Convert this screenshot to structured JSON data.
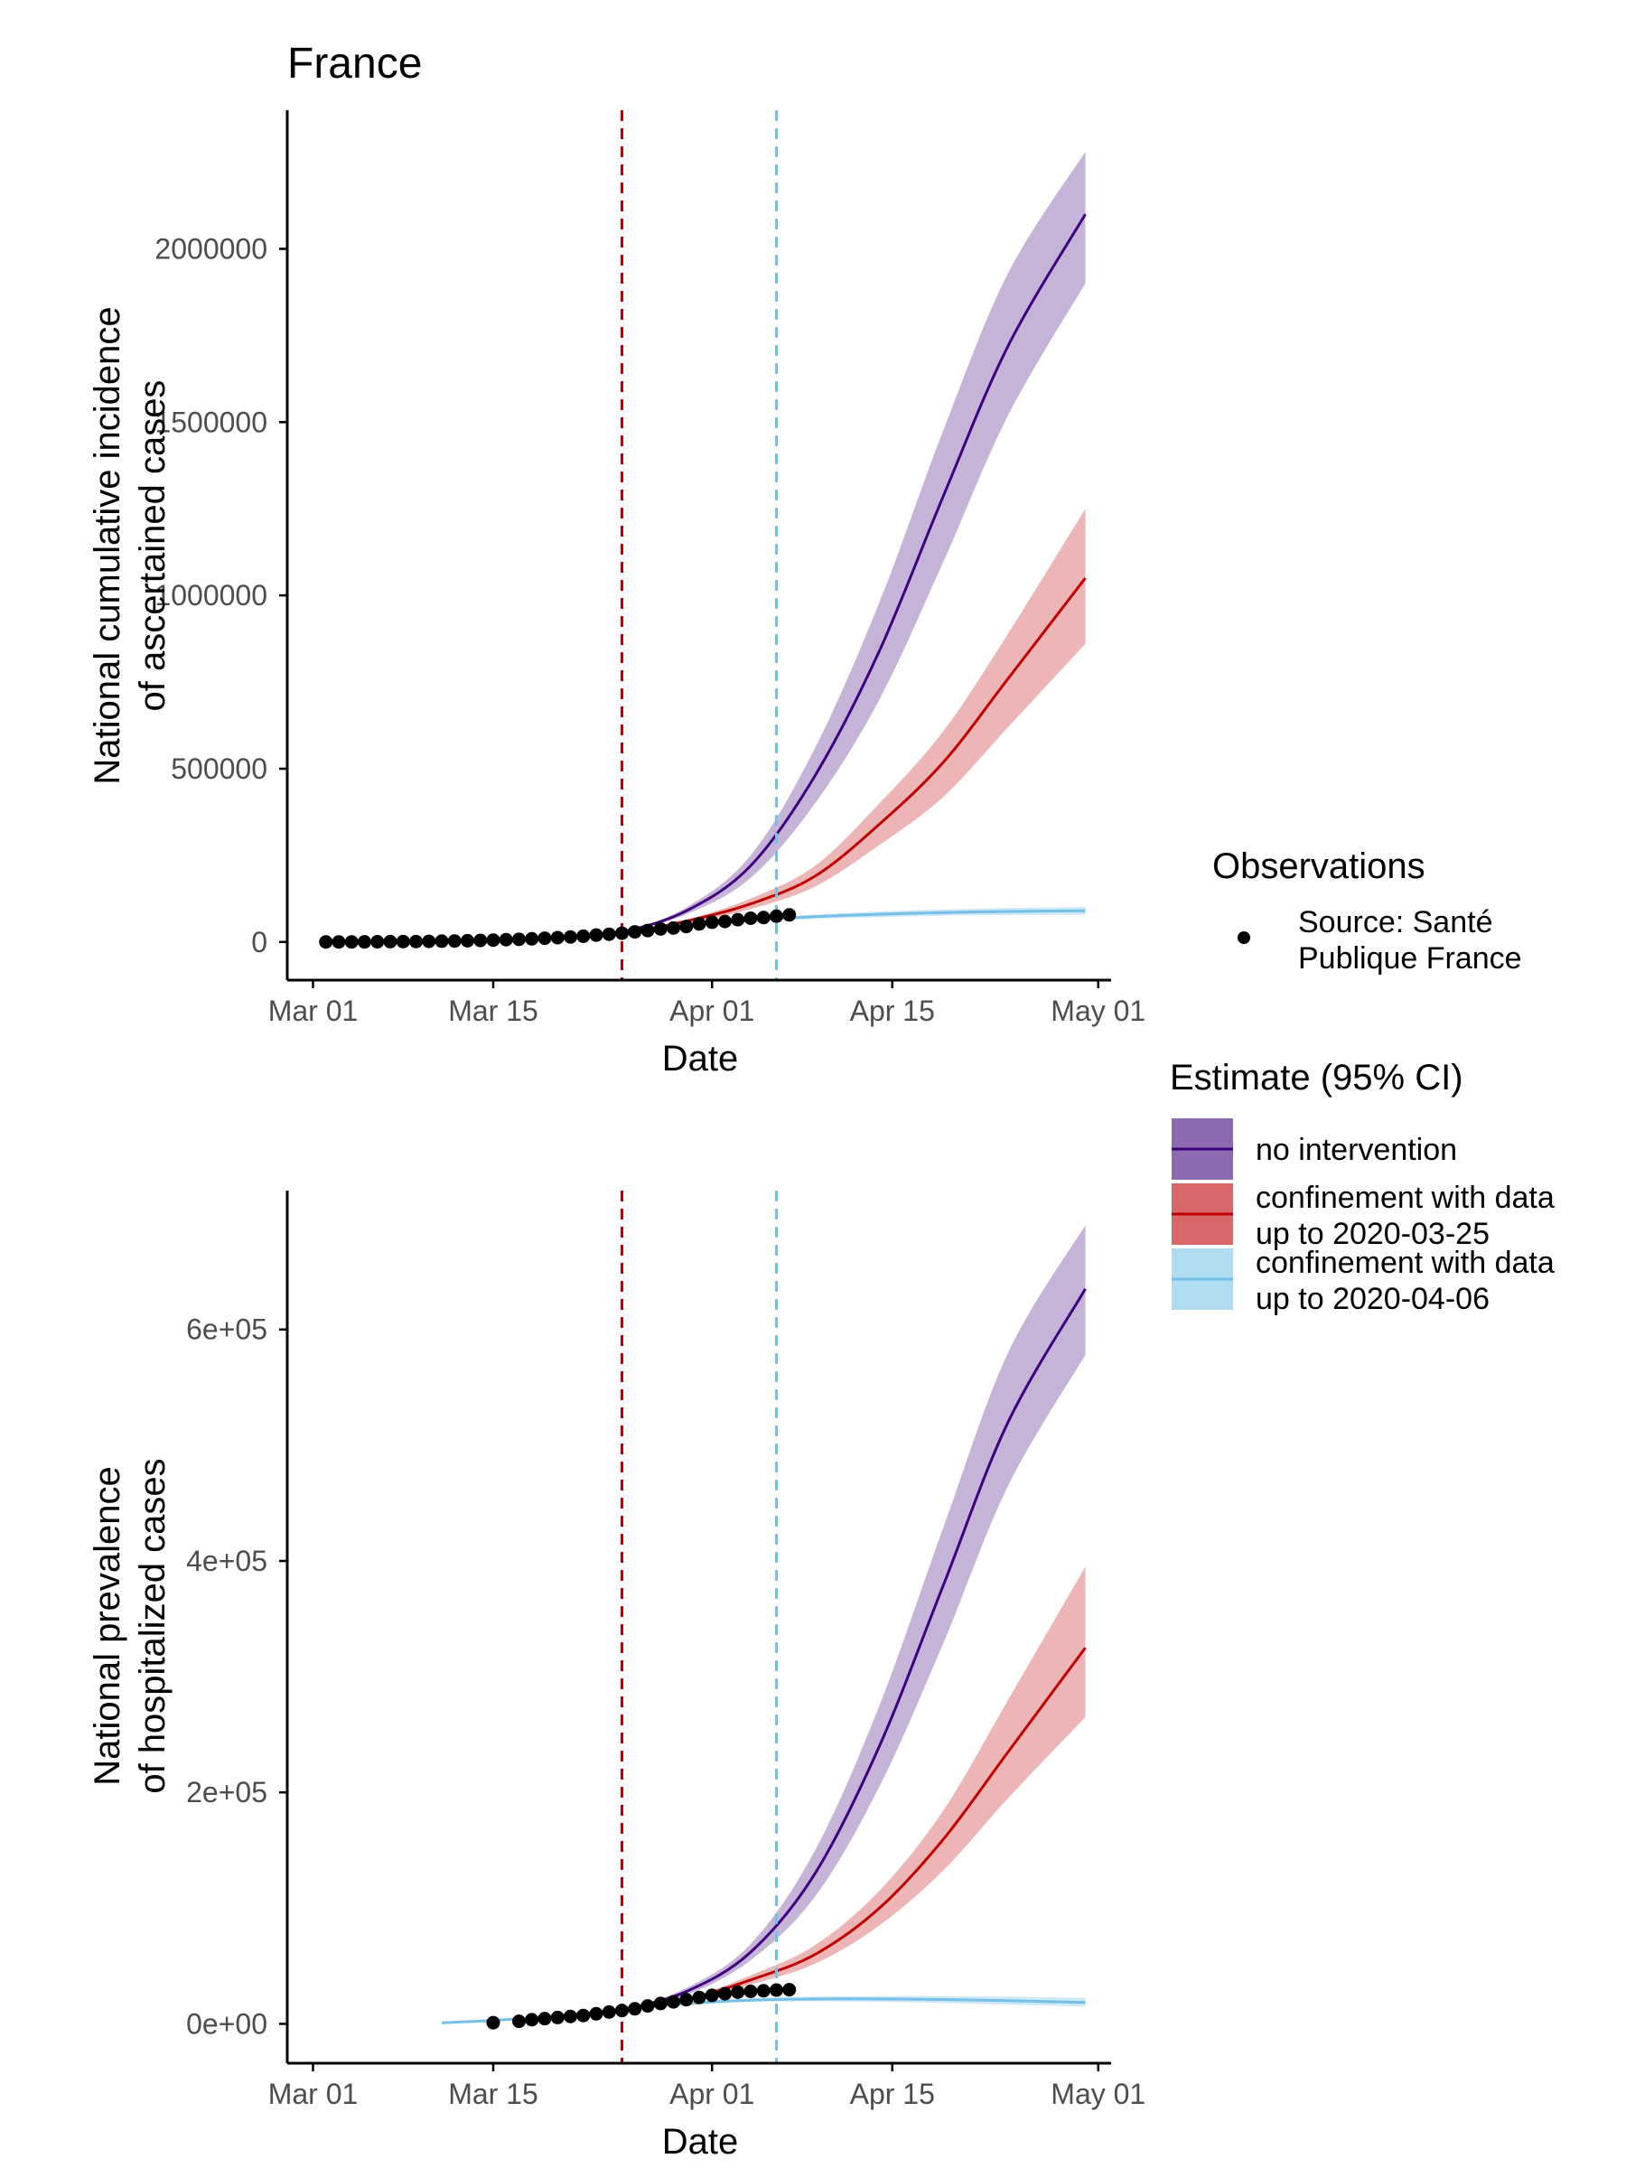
{
  "title": "France",
  "legend": {
    "observations": {
      "title": "Observations",
      "items": [
        {
          "label_lines": [
            "Source: Santé",
            "Publique France"
          ]
        }
      ]
    },
    "estimate": {
      "title": "Estimate (95% CI)",
      "items": [
        {
          "key": "noint",
          "label_lines": [
            "no intervention"
          ]
        },
        {
          "key": "conf25",
          "label_lines": [
            "confinement with data",
            "up to 2020-03-25"
          ]
        },
        {
          "key": "conf06",
          "label_lines": [
            "confinement with data",
            "up to 2020-04-06"
          ]
        }
      ]
    }
  },
  "colors": {
    "noint_line": "#3f007d",
    "noint_band": "#bca6d1",
    "noint_key": "#8c6bb1",
    "conf25_line": "#c00000",
    "conf25_band": "#eaa8a8",
    "conf25_key": "#d9676a",
    "conf06_line": "#74c0e8",
    "conf06_band": "#c6e4f4",
    "conf06_key": "#b0dcf2",
    "vline_red": "#c00000",
    "vline_blue": "#74c0e8",
    "points": "#000000",
    "axis": "#000000"
  },
  "chart_data": [
    {
      "type": "line",
      "panel": "top",
      "xlabel": "Date",
      "ylabel_lines": [
        "National cumulative incidence",
        "of ascertained cases"
      ],
      "xlim": [
        "2020-02-28",
        "2020-05-02"
      ],
      "ylim": [
        -110000,
        2400000
      ],
      "xticks": [
        {
          "date": "2020-03-01",
          "label": "Mar 01"
        },
        {
          "date": "2020-03-15",
          "label": "Mar 15"
        },
        {
          "date": "2020-04-01",
          "label": "Apr 01"
        },
        {
          "date": "2020-04-15",
          "label": "Apr 15"
        },
        {
          "date": "2020-05-01",
          "label": "May 01"
        }
      ],
      "yticks": [
        {
          "value": 0,
          "label": "0"
        },
        {
          "value": 500000,
          "label": "500000"
        },
        {
          "value": 1000000,
          "label": "1000000"
        },
        {
          "value": 1500000,
          "label": "1500000"
        },
        {
          "value": 2000000,
          "label": "2000000"
        }
      ],
      "vlines": [
        {
          "date": "2020-03-25",
          "color": "red"
        },
        {
          "date": "2020-04-06",
          "color": "blue"
        }
      ],
      "observations": {
        "x": [
          "2020-03-02",
          "2020-03-03",
          "2020-03-04",
          "2020-03-05",
          "2020-03-06",
          "2020-03-07",
          "2020-03-08",
          "2020-03-09",
          "2020-03-10",
          "2020-03-11",
          "2020-03-12",
          "2020-03-13",
          "2020-03-14",
          "2020-03-15",
          "2020-03-16",
          "2020-03-17",
          "2020-03-18",
          "2020-03-19",
          "2020-03-20",
          "2020-03-21",
          "2020-03-22",
          "2020-03-23",
          "2020-03-24",
          "2020-03-25",
          "2020-03-26",
          "2020-03-27",
          "2020-03-28",
          "2020-03-29",
          "2020-03-30",
          "2020-03-31",
          "2020-04-01",
          "2020-04-02",
          "2020-04-03",
          "2020-04-04",
          "2020-04-05",
          "2020-04-06",
          "2020-04-07"
        ],
        "y": [
          190,
          212,
          285,
          423,
          613,
          949,
          1126,
          1209,
          1784,
          2281,
          2876,
          3661,
          4499,
          5423,
          6633,
          7730,
          9134,
          10995,
          12612,
          14459,
          16689,
          19856,
          22302,
          25233,
          29155,
          32964,
          37575,
          40174,
          44550,
          52128,
          56989,
          59105,
          64338,
          68605,
          70478,
          74390,
          78167
        ]
      },
      "series": [
        {
          "key": "noint",
          "x": [
            "2020-03-20",
            "2020-03-25",
            "2020-03-30",
            "2020-04-04",
            "2020-04-09",
            "2020-04-14",
            "2020-04-19",
            "2020-04-24",
            "2020-04-30"
          ],
          "y": [
            13000,
            30000,
            90000,
            220000,
            480000,
            840000,
            1290000,
            1720000,
            2100000
          ],
          "lower": [
            13000,
            30000,
            80000,
            185000,
            400000,
            700000,
            1100000,
            1520000,
            1900000
          ],
          "upper": [
            13000,
            30000,
            100000,
            250000,
            560000,
            980000,
            1480000,
            1930000,
            2280000
          ]
        },
        {
          "key": "conf25",
          "x": [
            "2020-03-20",
            "2020-03-25",
            "2020-03-30",
            "2020-04-04",
            "2020-04-09",
            "2020-04-14",
            "2020-04-19",
            "2020-04-24",
            "2020-04-30"
          ],
          "y": [
            13000,
            27000,
            60000,
            110000,
            190000,
            340000,
            520000,
            760000,
            1050000
          ],
          "lower": [
            13000,
            27000,
            55000,
            95000,
            160000,
            280000,
            420000,
            620000,
            860000
          ],
          "upper": [
            13000,
            27000,
            65000,
            125000,
            220000,
            400000,
            610000,
            890000,
            1250000
          ]
        },
        {
          "key": "conf06",
          "x": [
            "2020-03-20",
            "2020-03-25",
            "2020-03-30",
            "2020-04-04",
            "2020-04-09",
            "2020-04-14",
            "2020-04-19",
            "2020-04-24",
            "2020-04-30"
          ],
          "y": [
            13000,
            26000,
            45000,
            62000,
            73000,
            80000,
            85000,
            88000,
            90000
          ],
          "lower": [
            13000,
            26000,
            43000,
            58000,
            67000,
            72000,
            76000,
            78000,
            79000
          ],
          "upper": [
            13000,
            26000,
            47000,
            66000,
            79000,
            88000,
            94000,
            98000,
            101000
          ]
        }
      ]
    },
    {
      "type": "line",
      "panel": "bottom",
      "xlabel": "Date",
      "ylabel_lines": [
        "National prevalence",
        "of hospitalized cases"
      ],
      "xlim": [
        "2020-02-28",
        "2020-05-02"
      ],
      "ylim": [
        -34000,
        720000
      ],
      "xticks": [
        {
          "date": "2020-03-01",
          "label": "Mar 01"
        },
        {
          "date": "2020-03-15",
          "label": "Mar 15"
        },
        {
          "date": "2020-04-01",
          "label": "Apr 01"
        },
        {
          "date": "2020-04-15",
          "label": "Apr 15"
        },
        {
          "date": "2020-05-01",
          "label": "May 01"
        }
      ],
      "yticks": [
        {
          "value": 0,
          "label": "0e+00"
        },
        {
          "value": 200000,
          "label": "2e+05"
        },
        {
          "value": 400000,
          "label": "4e+05"
        },
        {
          "value": 600000,
          "label": "6e+05"
        }
      ],
      "vlines": [
        {
          "date": "2020-03-25",
          "color": "red"
        },
        {
          "date": "2020-04-06",
          "color": "blue"
        }
      ],
      "observations": {
        "x": [
          "2020-03-15",
          "2020-03-17",
          "2020-03-18",
          "2020-03-19",
          "2020-03-20",
          "2020-03-21",
          "2020-03-22",
          "2020-03-23",
          "2020-03-24",
          "2020-03-25",
          "2020-03-26",
          "2020-03-27",
          "2020-03-28",
          "2020-03-29",
          "2020-03-30",
          "2020-03-31",
          "2020-04-01",
          "2020-04-02",
          "2020-04-03",
          "2020-04-04",
          "2020-04-05",
          "2020-04-06",
          "2020-04-07"
        ],
        "y": [
          1000,
          2200,
          3600,
          4500,
          5500,
          6400,
          7200,
          8700,
          10200,
          11500,
          13000,
          15500,
          17600,
          19000,
          20900,
          22800,
          24600,
          26000,
          27400,
          28100,
          28600,
          29200,
          29500
        ]
      },
      "series": [
        {
          "key": "conf06",
          "x": [
            "2020-03-11",
            "2020-03-15",
            "2020-03-20",
            "2020-03-25",
            "2020-03-30",
            "2020-04-04",
            "2020-04-09",
            "2020-04-14",
            "2020-04-19",
            "2020-04-24",
            "2020-04-30"
          ],
          "y": [
            1000,
            3000,
            7000,
            12500,
            17500,
            20500,
            21500,
            21500,
            21000,
            20000,
            18500
          ],
          "lower": [
            1000,
            3000,
            7000,
            12000,
            16500,
            19000,
            19500,
            19000,
            18000,
            16500,
            15000
          ],
          "upper": [
            1000,
            3000,
            7000,
            13000,
            18500,
            22000,
            23500,
            24000,
            24000,
            23500,
            22500
          ]
        },
        {
          "key": "noint",
          "x": [
            "2020-03-20",
            "2020-03-25",
            "2020-03-30",
            "2020-04-04",
            "2020-04-09",
            "2020-04-14",
            "2020-04-19",
            "2020-04-24",
            "2020-04-30"
          ],
          "y": [
            6500,
            12500,
            28000,
            62000,
            130000,
            240000,
            380000,
            520000,
            635000
          ],
          "lower": [
            6500,
            12500,
            25000,
            55000,
            110000,
            205000,
            330000,
            465000,
            578000
          ],
          "upper": [
            6500,
            12500,
            31000,
            69000,
            150000,
            275000,
            430000,
            580000,
            690000
          ]
        },
        {
          "key": "conf25",
          "x": [
            "2020-03-20",
            "2020-03-25",
            "2020-03-30",
            "2020-04-04",
            "2020-04-09",
            "2020-04-14",
            "2020-04-19",
            "2020-04-24",
            "2020-04-30"
          ],
          "y": [
            6500,
            12500,
            21000,
            38000,
            60000,
            100000,
            160000,
            235000,
            325000
          ],
          "lower": [
            6500,
            12500,
            20000,
            34000,
            52000,
            85000,
            133000,
            195000,
            265000
          ],
          "upper": [
            6500,
            12500,
            22000,
            42000,
            68000,
            115000,
            185000,
            280000,
            395000
          ]
        }
      ]
    }
  ]
}
